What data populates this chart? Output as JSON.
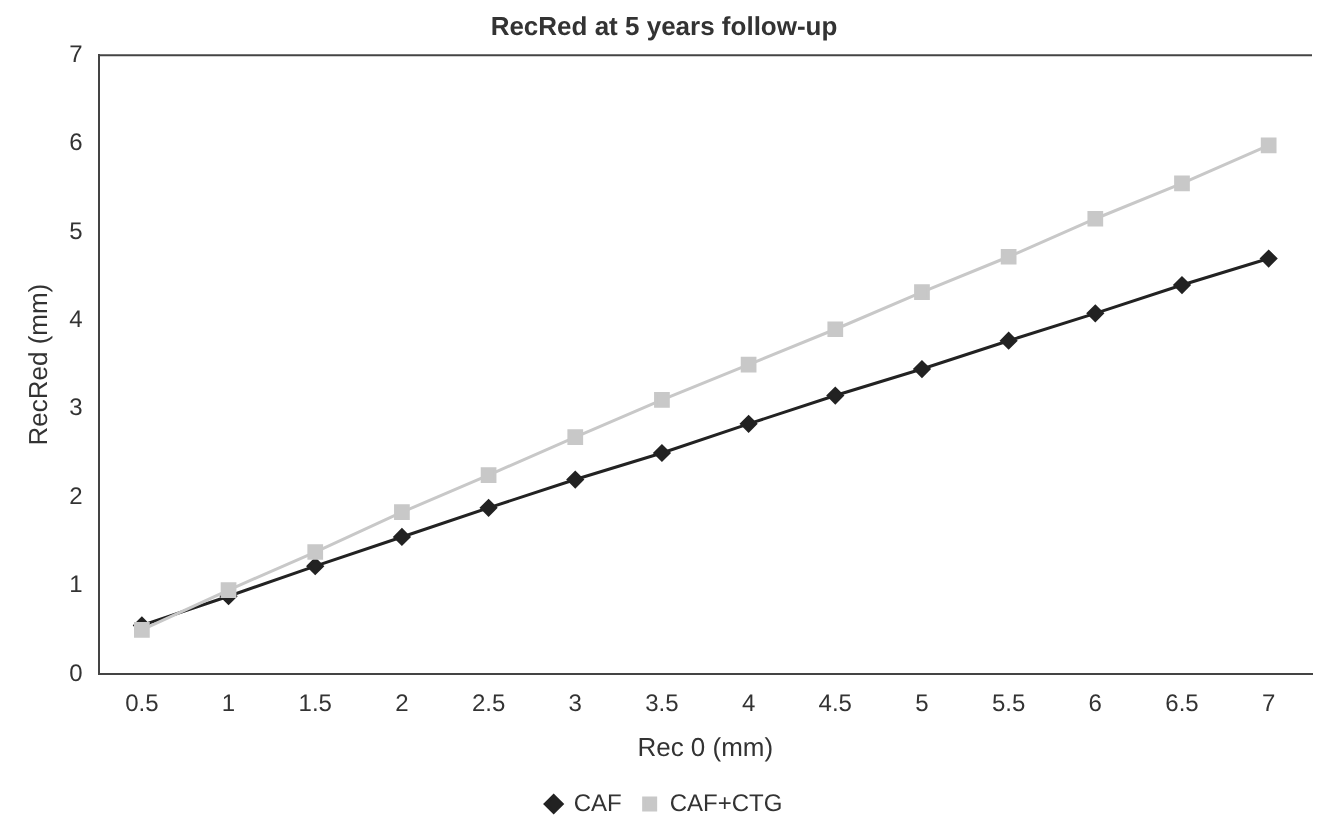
{
  "chart_data": {
    "type": "line",
    "title": "RecRed at 5 years follow-up",
    "xlabel": "Rec 0 (mm)",
    "ylabel": "RecRed (mm)",
    "categories": [
      "0.5",
      "1",
      "1.5",
      "2",
      "2.5",
      "3",
      "3.5",
      "4",
      "4.5",
      "5",
      "5.5",
      "6",
      "6.5",
      "7"
    ],
    "series": [
      {
        "name": "CAF",
        "color": "#222222",
        "marker": "diamond",
        "values": [
          0.55,
          0.88,
          1.22,
          1.55,
          1.88,
          2.2,
          2.5,
          2.83,
          3.15,
          3.45,
          3.77,
          4.08,
          4.4,
          4.7
        ]
      },
      {
        "name": "CAF+CTG",
        "color": "#c8c8c8",
        "marker": "square",
        "values": [
          0.5,
          0.95,
          1.38,
          1.83,
          2.25,
          2.68,
          3.1,
          3.5,
          3.9,
          4.32,
          4.72,
          5.15,
          5.55,
          5.98
        ]
      }
    ],
    "ylim": [
      0,
      7
    ],
    "yticks": [
      0,
      1,
      2,
      3,
      4,
      5,
      6,
      7
    ],
    "grid": false,
    "legend": "bottom"
  }
}
